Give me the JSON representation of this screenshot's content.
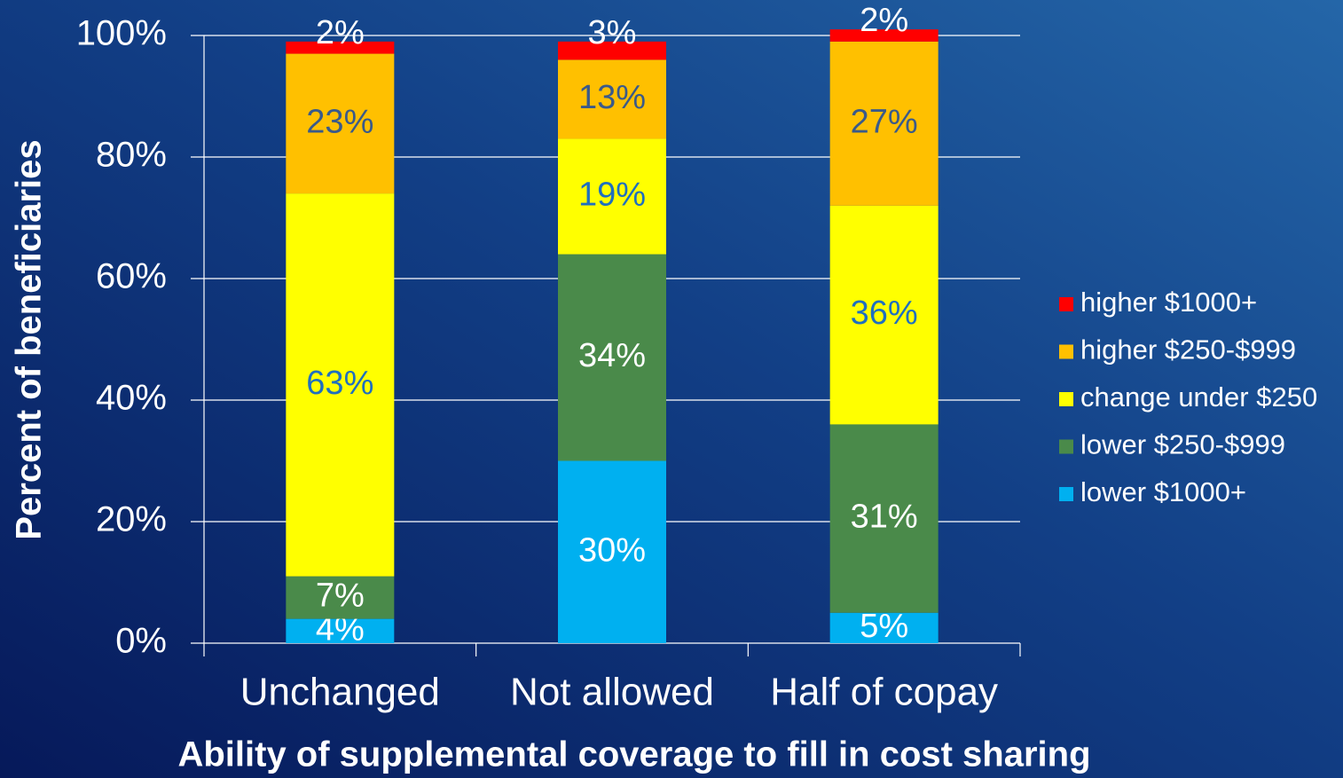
{
  "chart_data": {
    "type": "stacked_bar",
    "x_label": "Ability of supplemental coverage to fill in cost sharing",
    "y_label": "Percent of beneficiaries",
    "categories": [
      "Unchanged",
      "Not allowed",
      "Half of copay"
    ],
    "series": [
      {
        "name": "lower $1000+",
        "color": "#00b0f0",
        "values": [
          4,
          30,
          5
        ],
        "value_labels": [
          "4%",
          "30%",
          "5%"
        ]
      },
      {
        "name": "lower $250-$999",
        "color": "#4a8a4a",
        "values": [
          7,
          34,
          31
        ],
        "value_labels": [
          "7%",
          "34%",
          "31%"
        ]
      },
      {
        "name": "change under $250",
        "color": "#ffff00",
        "values": [
          63,
          19,
          36
        ],
        "value_labels": [
          "63%",
          "19%",
          "36%"
        ]
      },
      {
        "name": "higher $250-$999",
        "color": "#ffc000",
        "values": [
          23,
          13,
          27
        ],
        "value_labels": [
          "23%",
          "13%",
          "27%"
        ]
      },
      {
        "name": "higher $1000+",
        "color": "#ff0000",
        "values": [
          2,
          3,
          2
        ],
        "value_labels": [
          "2%",
          "3%",
          "2%"
        ]
      }
    ],
    "ylim": [
      0,
      100
    ],
    "yticks": [
      {
        "value": 0,
        "label": "0%"
      },
      {
        "value": 20,
        "label": "20%"
      },
      {
        "value": 40,
        "label": "40%"
      },
      {
        "value": 60,
        "label": "60%"
      },
      {
        "value": 80,
        "label": "80%"
      },
      {
        "value": 100,
        "label": "100%"
      }
    ],
    "grid": true,
    "legend": "right"
  }
}
